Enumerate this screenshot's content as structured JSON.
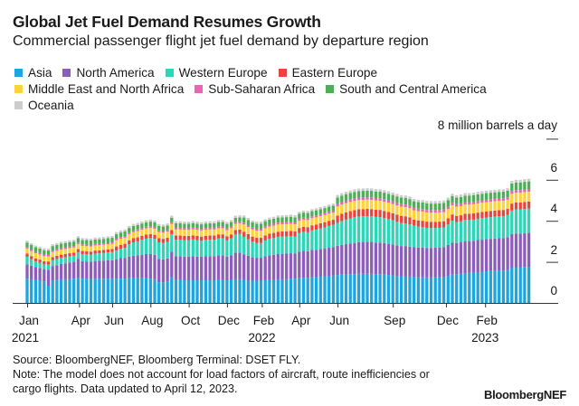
{
  "title": "Global Jet Fuel Demand Resumes Growth",
  "subtitle": "Commercial passenger flight jet fuel demand by departure region",
  "source": "Source: BloombergNEF, Bloomberg Terminal: DSET FLY.",
  "note_line1": "Note: The model does not account for load factors of aircraft, route inefficiencies or",
  "note_line2": "cargo flights. Data updated to April 12, 2023.",
  "logo": "BloombergNEF",
  "chart_data": {
    "type": "bar",
    "stacked": true,
    "title": "Global Jet Fuel Demand Resumes Growth",
    "ylabel": "8 million barrels a day",
    "ylim": [
      0,
      8
    ],
    "yticks": [
      {
        "value": 0,
        "label": "0"
      },
      {
        "value": 2,
        "label": "2"
      },
      {
        "value": 4,
        "label": "4"
      },
      {
        "value": 6,
        "label": "6"
      }
    ],
    "x_unit": "weekly, starting first week of Jan 2021",
    "xticks": [
      {
        "week": 0,
        "label": "Jan",
        "year": "2021"
      },
      {
        "week": 12.2,
        "label": "Apr"
      },
      {
        "week": 20,
        "label": "Jun"
      },
      {
        "week": 29,
        "label": "Aug"
      },
      {
        "week": 38,
        "label": "Oct"
      },
      {
        "week": 47,
        "label": "Dec"
      },
      {
        "week": 55.2,
        "label": "Feb",
        "year": "2022"
      },
      {
        "week": 64,
        "label": "Apr"
      },
      {
        "week": 73,
        "label": "Jun"
      },
      {
        "week": 86,
        "label": "Sep"
      },
      {
        "week": 98.5,
        "label": "Dec"
      },
      {
        "week": 107.7,
        "label": "Feb",
        "year": "2023"
      }
    ],
    "legend_position": "top-left",
    "series": [
      {
        "name": "Asia",
        "color": "#1ea5dd",
        "values": [
          1.18,
          1.15,
          1.12,
          1.1,
          1.05,
          0.82,
          1.1,
          1.12,
          1.15,
          1.15,
          1.17,
          1.18,
          1.2,
          1.18,
          1.18,
          1.17,
          1.18,
          1.18,
          1.18,
          1.18,
          1.18,
          1.18,
          1.18,
          1.18,
          1.2,
          1.2,
          1.2,
          1.2,
          1.2,
          1.18,
          1.16,
          1.0,
          1.0,
          1.05,
          1.25,
          1.12,
          1.12,
          1.1,
          1.1,
          1.1,
          1.1,
          1.1,
          1.1,
          1.1,
          1.1,
          1.12,
          1.12,
          1.1,
          1.12,
          1.15,
          1.15,
          1.12,
          1.1,
          1.08,
          1.08,
          1.08,
          1.1,
          1.12,
          1.12,
          1.14,
          1.15,
          1.16,
          1.18,
          1.18,
          1.2,
          1.22,
          1.22,
          1.25,
          1.26,
          1.28,
          1.3,
          1.32,
          1.34,
          1.36,
          1.38,
          1.38,
          1.4,
          1.4,
          1.42,
          1.42,
          1.42,
          1.42,
          1.4,
          1.4,
          1.38,
          1.36,
          1.34,
          1.32,
          1.3,
          1.3,
          1.28,
          1.26,
          1.25,
          1.25,
          1.24,
          1.24,
          1.25,
          1.25,
          1.25,
          1.32,
          1.38,
          1.4,
          1.42,
          1.45,
          1.46,
          1.48,
          1.5,
          1.52,
          1.54,
          1.55,
          1.56,
          1.57,
          1.58,
          1.6,
          1.72,
          1.74,
          1.74,
          1.75,
          1.76
        ]
      },
      {
        "name": "North America",
        "color": "#8c5db9",
        "values": [
          0.69,
          0.66,
          0.62,
          0.6,
          0.58,
          0.8,
          0.7,
          0.72,
          0.75,
          0.78,
          0.8,
          0.82,
          0.95,
          0.85,
          0.84,
          0.84,
          0.86,
          0.87,
          0.88,
          0.9,
          0.9,
          0.95,
          1.0,
          1.0,
          1.05,
          1.1,
          1.12,
          1.15,
          1.18,
          1.2,
          1.18,
          1.15,
          1.12,
          1.12,
          1.25,
          1.16,
          1.16,
          1.16,
          1.16,
          1.18,
          1.16,
          1.15,
          1.17,
          1.18,
          1.18,
          1.2,
          1.2,
          1.15,
          1.2,
          1.3,
          1.3,
          1.25,
          1.2,
          1.15,
          1.12,
          1.12,
          1.18,
          1.2,
          1.22,
          1.24,
          1.24,
          1.24,
          1.24,
          1.22,
          1.3,
          1.32,
          1.3,
          1.33,
          1.33,
          1.35,
          1.36,
          1.38,
          1.38,
          1.42,
          1.45,
          1.48,
          1.5,
          1.52,
          1.54,
          1.55,
          1.56,
          1.55,
          1.54,
          1.54,
          1.53,
          1.52,
          1.5,
          1.48,
          1.47,
          1.47,
          1.46,
          1.45,
          1.45,
          1.45,
          1.44,
          1.44,
          1.44,
          1.45,
          1.47,
          1.5,
          1.55,
          1.52,
          1.53,
          1.55,
          1.55,
          1.55,
          1.56,
          1.56,
          1.57,
          1.57,
          1.58,
          1.58,
          1.58,
          1.6,
          1.63,
          1.64,
          1.64,
          1.65,
          1.65
        ]
      },
      {
        "name": "Western Europe",
        "color": "#2ed5b6",
        "values": [
          0.38,
          0.32,
          0.28,
          0.26,
          0.25,
          0.25,
          0.28,
          0.3,
          0.3,
          0.3,
          0.3,
          0.3,
          0.32,
          0.35,
          0.35,
          0.34,
          0.36,
          0.36,
          0.37,
          0.38,
          0.4,
          0.42,
          0.45,
          0.5,
          0.6,
          0.65,
          0.68,
          0.72,
          0.75,
          0.78,
          0.78,
          0.8,
          0.8,
          0.8,
          0.85,
          0.8,
          0.8,
          0.8,
          0.8,
          0.81,
          0.8,
          0.78,
          0.8,
          0.8,
          0.8,
          0.82,
          0.82,
          0.8,
          0.82,
          0.9,
          0.92,
          0.85,
          0.8,
          0.75,
          0.72,
          0.72,
          0.76,
          0.8,
          0.82,
          0.84,
          0.84,
          0.84,
          0.84,
          0.83,
          0.9,
          0.92,
          0.92,
          0.95,
          0.98,
          1.0,
          1.02,
          1.05,
          1.08,
          1.12,
          1.16,
          1.2,
          1.22,
          1.25,
          1.25,
          1.25,
          1.25,
          1.25,
          1.25,
          1.24,
          1.22,
          1.2,
          1.18,
          1.15,
          1.12,
          1.1,
          1.08,
          1.05,
          1.02,
          1.0,
          0.98,
          0.97,
          0.96,
          0.96,
          0.96,
          1.0,
          1.08,
          1.02,
          1.02,
          1.04,
          1.03,
          1.03,
          1.04,
          1.05,
          1.05,
          1.06,
          1.06,
          1.07,
          1.07,
          1.08,
          1.15,
          1.17,
          1.17,
          1.18,
          1.19
        ]
      },
      {
        "name": "Eastern Europe",
        "color": "#e8453c",
        "values": [
          0.15,
          0.15,
          0.15,
          0.15,
          0.15,
          0.15,
          0.15,
          0.15,
          0.15,
          0.15,
          0.15,
          0.15,
          0.15,
          0.15,
          0.15,
          0.15,
          0.15,
          0.15,
          0.15,
          0.15,
          0.15,
          0.2,
          0.2,
          0.2,
          0.2,
          0.2,
          0.2,
          0.2,
          0.2,
          0.2,
          0.2,
          0.2,
          0.2,
          0.2,
          0.2,
          0.2,
          0.2,
          0.2,
          0.2,
          0.2,
          0.2,
          0.2,
          0.2,
          0.2,
          0.2,
          0.2,
          0.2,
          0.2,
          0.2,
          0.2,
          0.2,
          0.25,
          0.25,
          0.25,
          0.25,
          0.25,
          0.25,
          0.25,
          0.25,
          0.25,
          0.25,
          0.25,
          0.25,
          0.25,
          0.25,
          0.25,
          0.25,
          0.25,
          0.25,
          0.25,
          0.25,
          0.25,
          0.25,
          0.35,
          0.35,
          0.35,
          0.35,
          0.35,
          0.35,
          0.35,
          0.35,
          0.35,
          0.35,
          0.35,
          0.35,
          0.35,
          0.35,
          0.35,
          0.35,
          0.35,
          0.35,
          0.3,
          0.3,
          0.3,
          0.3,
          0.3,
          0.3,
          0.3,
          0.3,
          0.3,
          0.3,
          0.3,
          0.3,
          0.3,
          0.3,
          0.3,
          0.3,
          0.3,
          0.3,
          0.3,
          0.3,
          0.3,
          0.3,
          0.3,
          0.34,
          0.34,
          0.34,
          0.34,
          0.34
        ]
      },
      {
        "name": "Middle East and North Africa",
        "color": "#fdd23a",
        "values": [
          0.25,
          0.25,
          0.25,
          0.25,
          0.25,
          0.25,
          0.25,
          0.25,
          0.25,
          0.25,
          0.25,
          0.25,
          0.25,
          0.25,
          0.25,
          0.25,
          0.25,
          0.25,
          0.25,
          0.25,
          0.25,
          0.3,
          0.3,
          0.3,
          0.3,
          0.3,
          0.3,
          0.3,
          0.3,
          0.3,
          0.3,
          0.3,
          0.3,
          0.3,
          0.3,
          0.3,
          0.3,
          0.3,
          0.3,
          0.3,
          0.3,
          0.3,
          0.3,
          0.3,
          0.3,
          0.3,
          0.3,
          0.3,
          0.3,
          0.3,
          0.3,
          0.35,
          0.35,
          0.35,
          0.35,
          0.35,
          0.35,
          0.35,
          0.35,
          0.35,
          0.35,
          0.35,
          0.35,
          0.35,
          0.35,
          0.35,
          0.35,
          0.35,
          0.35,
          0.35,
          0.35,
          0.35,
          0.35,
          0.45,
          0.45,
          0.45,
          0.45,
          0.45,
          0.45,
          0.45,
          0.45,
          0.45,
          0.45,
          0.45,
          0.45,
          0.45,
          0.45,
          0.45,
          0.45,
          0.45,
          0.45,
          0.45,
          0.45,
          0.45,
          0.45,
          0.45,
          0.45,
          0.45,
          0.45,
          0.45,
          0.45,
          0.45,
          0.45,
          0.45,
          0.45,
          0.45,
          0.45,
          0.45,
          0.45,
          0.45,
          0.45,
          0.45,
          0.45,
          0.45,
          0.48,
          0.48,
          0.48,
          0.48,
          0.48
        ]
      },
      {
        "name": "Sub-Saharan Africa",
        "color": "#e765b3",
        "values": [
          0.07,
          0.07,
          0.07,
          0.07,
          0.07,
          0.07,
          0.07,
          0.07,
          0.07,
          0.07,
          0.07,
          0.07,
          0.07,
          0.07,
          0.07,
          0.07,
          0.07,
          0.07,
          0.07,
          0.07,
          0.07,
          0.08,
          0.08,
          0.08,
          0.08,
          0.08,
          0.08,
          0.08,
          0.08,
          0.08,
          0.08,
          0.08,
          0.08,
          0.08,
          0.08,
          0.08,
          0.08,
          0.08,
          0.08,
          0.08,
          0.08,
          0.08,
          0.08,
          0.08,
          0.08,
          0.08,
          0.08,
          0.08,
          0.08,
          0.08,
          0.08,
          0.09,
          0.09,
          0.09,
          0.09,
          0.09,
          0.09,
          0.09,
          0.09,
          0.09,
          0.09,
          0.09,
          0.09,
          0.09,
          0.09,
          0.09,
          0.09,
          0.09,
          0.09,
          0.09,
          0.09,
          0.09,
          0.09,
          0.12,
          0.12,
          0.12,
          0.12,
          0.12,
          0.12,
          0.12,
          0.12,
          0.12,
          0.12,
          0.12,
          0.12,
          0.12,
          0.12,
          0.12,
          0.12,
          0.12,
          0.12,
          0.12,
          0.12,
          0.12,
          0.12,
          0.12,
          0.12,
          0.12,
          0.12,
          0.12,
          0.12,
          0.12,
          0.12,
          0.12,
          0.12,
          0.12,
          0.12,
          0.12,
          0.12,
          0.12,
          0.12,
          0.12,
          0.12,
          0.12,
          0.13,
          0.13,
          0.13,
          0.13,
          0.13
        ]
      },
      {
        "name": "South and Central America",
        "color": "#4caf55",
        "values": [
          0.22,
          0.22,
          0.22,
          0.22,
          0.22,
          0.22,
          0.22,
          0.22,
          0.22,
          0.22,
          0.22,
          0.22,
          0.22,
          0.22,
          0.22,
          0.22,
          0.22,
          0.22,
          0.22,
          0.22,
          0.22,
          0.22,
          0.22,
          0.22,
          0.22,
          0.22,
          0.22,
          0.22,
          0.22,
          0.22,
          0.22,
          0.22,
          0.22,
          0.22,
          0.22,
          0.22,
          0.22,
          0.22,
          0.22,
          0.22,
          0.22,
          0.22,
          0.22,
          0.22,
          0.22,
          0.22,
          0.22,
          0.22,
          0.22,
          0.22,
          0.22,
          0.25,
          0.25,
          0.25,
          0.25,
          0.25,
          0.25,
          0.25,
          0.25,
          0.25,
          0.25,
          0.25,
          0.25,
          0.25,
          0.25,
          0.25,
          0.25,
          0.25,
          0.25,
          0.25,
          0.25,
          0.25,
          0.25,
          0.32,
          0.32,
          0.32,
          0.32,
          0.32,
          0.32,
          0.32,
          0.32,
          0.32,
          0.32,
          0.32,
          0.32,
          0.32,
          0.32,
          0.32,
          0.32,
          0.32,
          0.32,
          0.32,
          0.32,
          0.32,
          0.32,
          0.32,
          0.32,
          0.32,
          0.32,
          0.32,
          0.32,
          0.32,
          0.32,
          0.32,
          0.32,
          0.32,
          0.32,
          0.32,
          0.32,
          0.32,
          0.32,
          0.32,
          0.32,
          0.32,
          0.37,
          0.37,
          0.37,
          0.37,
          0.37
        ]
      },
      {
        "name": "Oceania",
        "color": "#cccccc",
        "values": [
          0.09,
          0.09,
          0.09,
          0.09,
          0.09,
          0.09,
          0.09,
          0.09,
          0.09,
          0.09,
          0.09,
          0.09,
          0.09,
          0.09,
          0.09,
          0.09,
          0.09,
          0.09,
          0.09,
          0.09,
          0.09,
          0.1,
          0.1,
          0.1,
          0.1,
          0.1,
          0.1,
          0.1,
          0.1,
          0.1,
          0.1,
          0.1,
          0.1,
          0.1,
          0.1,
          0.1,
          0.1,
          0.1,
          0.1,
          0.1,
          0.1,
          0.1,
          0.1,
          0.1,
          0.1,
          0.1,
          0.1,
          0.1,
          0.1,
          0.1,
          0.1,
          0.1,
          0.1,
          0.1,
          0.1,
          0.1,
          0.1,
          0.1,
          0.1,
          0.1,
          0.1,
          0.1,
          0.1,
          0.1,
          0.1,
          0.1,
          0.1,
          0.1,
          0.1,
          0.1,
          0.1,
          0.1,
          0.1,
          0.12,
          0.12,
          0.12,
          0.12,
          0.12,
          0.12,
          0.12,
          0.12,
          0.12,
          0.12,
          0.12,
          0.12,
          0.12,
          0.12,
          0.12,
          0.12,
          0.12,
          0.12,
          0.12,
          0.12,
          0.12,
          0.12,
          0.12,
          0.12,
          0.12,
          0.12,
          0.12,
          0.12,
          0.12,
          0.12,
          0.12,
          0.12,
          0.12,
          0.12,
          0.12,
          0.12,
          0.12,
          0.12,
          0.12,
          0.12,
          0.12,
          0.13,
          0.13,
          0.13,
          0.13,
          0.13
        ]
      }
    ]
  }
}
